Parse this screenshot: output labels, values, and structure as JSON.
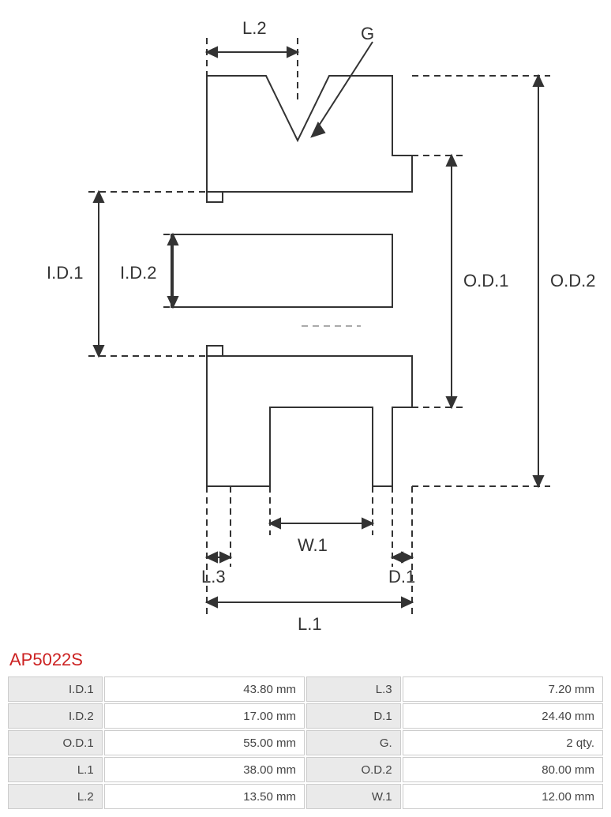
{
  "product_code": "AP5022S",
  "colors": {
    "title": "#c22222",
    "stroke": "#333333",
    "label_bg": "#eaeaea",
    "border": "#cccccc",
    "background": "#ffffff"
  },
  "diagram": {
    "type": "engineering-section",
    "stroke_width": 2,
    "dash": "8 6",
    "font_size": 22,
    "labels": {
      "L2": "L.2",
      "G": "G",
      "ID1": "I.D.1",
      "ID2": "I.D.2",
      "OD1": "O.D.1",
      "OD2": "O.D.2",
      "W1": "W.1",
      "L3": "L.3",
      "D1": "D.1",
      "L1": "L.1"
    }
  },
  "spec_rows": [
    {
      "l1": "I.D.1",
      "v1": "43.80 mm",
      "l2": "L.3",
      "v2": "7.20 mm"
    },
    {
      "l1": "I.D.2",
      "v1": "17.00 mm",
      "l2": "D.1",
      "v2": "24.40 mm"
    },
    {
      "l1": "O.D.1",
      "v1": "55.00 mm",
      "l2": "G.",
      "v2": "2 qty."
    },
    {
      "l1": "L.1",
      "v1": "38.00 mm",
      "l2": "O.D.2",
      "v2": "80.00 mm"
    },
    {
      "l1": "L.2",
      "v1": "13.50 mm",
      "l2": "W.1",
      "v2": "12.00 mm"
    }
  ]
}
